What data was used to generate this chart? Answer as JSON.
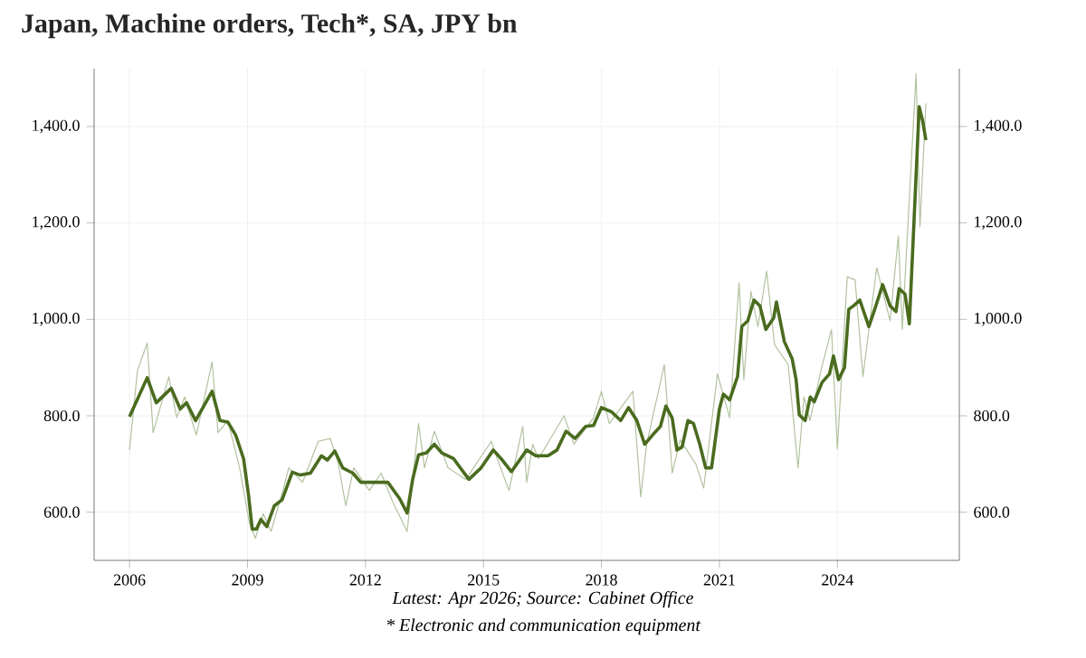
{
  "chart_data": {
    "type": "line",
    "title": "Japan, Machine orders, Tech*, SA, JPY bn",
    "annotations": [
      "Latest: Apr 2026; Source: Cabinet Office",
      "* Electronic and communication equipment"
    ],
    "xlim": [
      2005.1,
      2027.1
    ],
    "xticks": [
      2006,
      2009,
      2012,
      2015,
      2018,
      2021,
      2024
    ],
    "ylim": [
      500,
      1520
    ],
    "yticks": [
      {
        "value": 600,
        "label": "600.0"
      },
      {
        "value": 800,
        "label": "800.0"
      },
      {
        "value": 1000,
        "label": "1,000.0"
      },
      {
        "value": 1200,
        "label": "1,200.0"
      },
      {
        "value": 1400,
        "label": "1,400.0"
      }
    ],
    "y2lim": [
      500,
      1520
    ],
    "y2ticks": [
      {
        "value": 600,
        "label": "600.0"
      },
      {
        "value": 800,
        "label": "800.0"
      },
      {
        "value": 1000,
        "label": "1,000.0"
      },
      {
        "value": 1200,
        "label": "1,200.0"
      },
      {
        "value": 1400,
        "label": "1,400.0"
      }
    ],
    "grid": true,
    "marker": "none",
    "line_style": "solid",
    "series": [
      {
        "color": "#b3c2a0",
        "x": [
          2006.0,
          2006.2,
          2006.45,
          2006.6,
          2007.0,
          2007.2,
          2007.4,
          2007.7,
          2008.1,
          2008.25,
          2008.5,
          2008.8,
          2009.05,
          2009.2,
          2009.4,
          2009.6,
          2009.9,
          2010.05,
          2010.4,
          2010.8,
          2011.1,
          2011.3,
          2011.5,
          2011.7,
          2012.1,
          2012.4,
          2012.7,
          2013.06,
          2013.35,
          2013.5,
          2013.75,
          2014.1,
          2014.55,
          2015.2,
          2015.35,
          2015.65,
          2016.0,
          2016.1,
          2016.25,
          2016.4,
          2017.05,
          2017.3,
          2017.8,
          2018.0,
          2018.2,
          2018.8,
          2019.0,
          2019.15,
          2019.6,
          2019.8,
          2020.0,
          2020.4,
          2020.6,
          2020.95,
          2021.26,
          2021.5,
          2021.62,
          2021.8,
          2021.98,
          2022.2,
          2022.4,
          2022.75,
          2023.0,
          2023.15,
          2023.3,
          2023.6,
          2023.85,
          2024.0,
          2024.25,
          2024.45,
          2024.65,
          2025.0,
          2025.34,
          2025.55,
          2025.65,
          2026.0,
          2026.1,
          2026.25
        ],
        "values": [
          729,
          893,
          951,
          765,
          881,
          796,
          839,
          760,
          912,
          765,
          790,
          692,
          577,
          546,
          597,
          560,
          645,
          692,
          662,
          747,
          753,
          705,
          613,
          692,
          645,
          681,
          620,
          560,
          784,
          692,
          768,
          692,
          668,
          747,
          711,
          645,
          778,
          662,
          741,
          711,
          800,
          741,
          796,
          851,
          784,
          851,
          632,
          741,
          906,
          681,
          750,
          700,
          650,
          887,
          796,
          1076,
          875,
          1058,
          985,
          1100,
          948,
          906,
          692,
          839,
          790,
          900,
          979,
          731,
          1088,
          1082,
          881,
          1107,
          997,
          1173,
          979,
          1509,
          1192,
          1448
        ]
      },
      {
        "color": "#4a6b1e",
        "x": [
          2006.0,
          2006.45,
          2006.68,
          2007.06,
          2007.29,
          2007.45,
          2007.68,
          2008.1,
          2008.3,
          2008.5,
          2008.7,
          2008.9,
          2009.03,
          2009.12,
          2009.23,
          2009.34,
          2009.49,
          2009.68,
          2009.88,
          2010.14,
          2010.34,
          2010.6,
          2010.88,
          2011.03,
          2011.22,
          2011.42,
          2011.68,
          2011.88,
          2012.26,
          2012.57,
          2012.87,
          2013.06,
          2013.2,
          2013.35,
          2013.55,
          2013.75,
          2013.94,
          2014.24,
          2014.63,
          2014.94,
          2015.25,
          2015.48,
          2015.71,
          2016.1,
          2016.33,
          2016.64,
          2016.87,
          2017.1,
          2017.33,
          2017.6,
          2017.8,
          2018.0,
          2018.26,
          2018.49,
          2018.69,
          2018.9,
          2019.1,
          2019.3,
          2019.5,
          2019.64,
          2019.8,
          2019.92,
          2020.05,
          2020.2,
          2020.34,
          2020.5,
          2020.65,
          2020.8,
          2021.0,
          2021.1,
          2021.26,
          2021.46,
          2021.57,
          2021.72,
          2021.88,
          2022.03,
          2022.18,
          2022.38,
          2022.45,
          2022.65,
          2022.85,
          2022.95,
          2023.03,
          2023.18,
          2023.31,
          2023.41,
          2023.61,
          2023.8,
          2023.9,
          2024.03,
          2024.18,
          2024.29,
          2024.41,
          2024.57,
          2024.8,
          2024.95,
          2025.15,
          2025.34,
          2025.49,
          2025.57,
          2025.72,
          2025.83,
          2026.08,
          2026.17,
          2026.25
        ],
        "values": [
          798,
          879,
          827,
          857,
          814,
          827,
          790,
          851,
          790,
          787,
          760,
          711,
          633,
          565,
          565,
          585,
          570,
          613,
          626,
          683,
          677,
          681,
          717,
          708,
          727,
          692,
          681,
          662,
          662,
          662,
          628,
          598,
          668,
          719,
          723,
          741,
          723,
          711,
          668,
          692,
          729,
          708,
          684,
          729,
          717,
          717,
          729,
          768,
          753,
          778,
          780,
          817,
          808,
          790,
          817,
          790,
          741,
          760,
          778,
          820,
          795,
          729,
          735,
          790,
          784,
          741,
          692,
          692,
          814,
          845,
          833,
          881,
          985,
          997,
          1040,
          1028,
          979,
          1003,
          1036,
          954,
          918,
          875,
          802,
          790,
          839,
          829,
          869,
          887,
          924,
          875,
          900,
          1021,
          1028,
          1040,
          985,
          1021,
          1072,
          1028,
          1016,
          1064,
          1052,
          991,
          1441,
          1411,
          1372
        ]
      }
    ]
  }
}
